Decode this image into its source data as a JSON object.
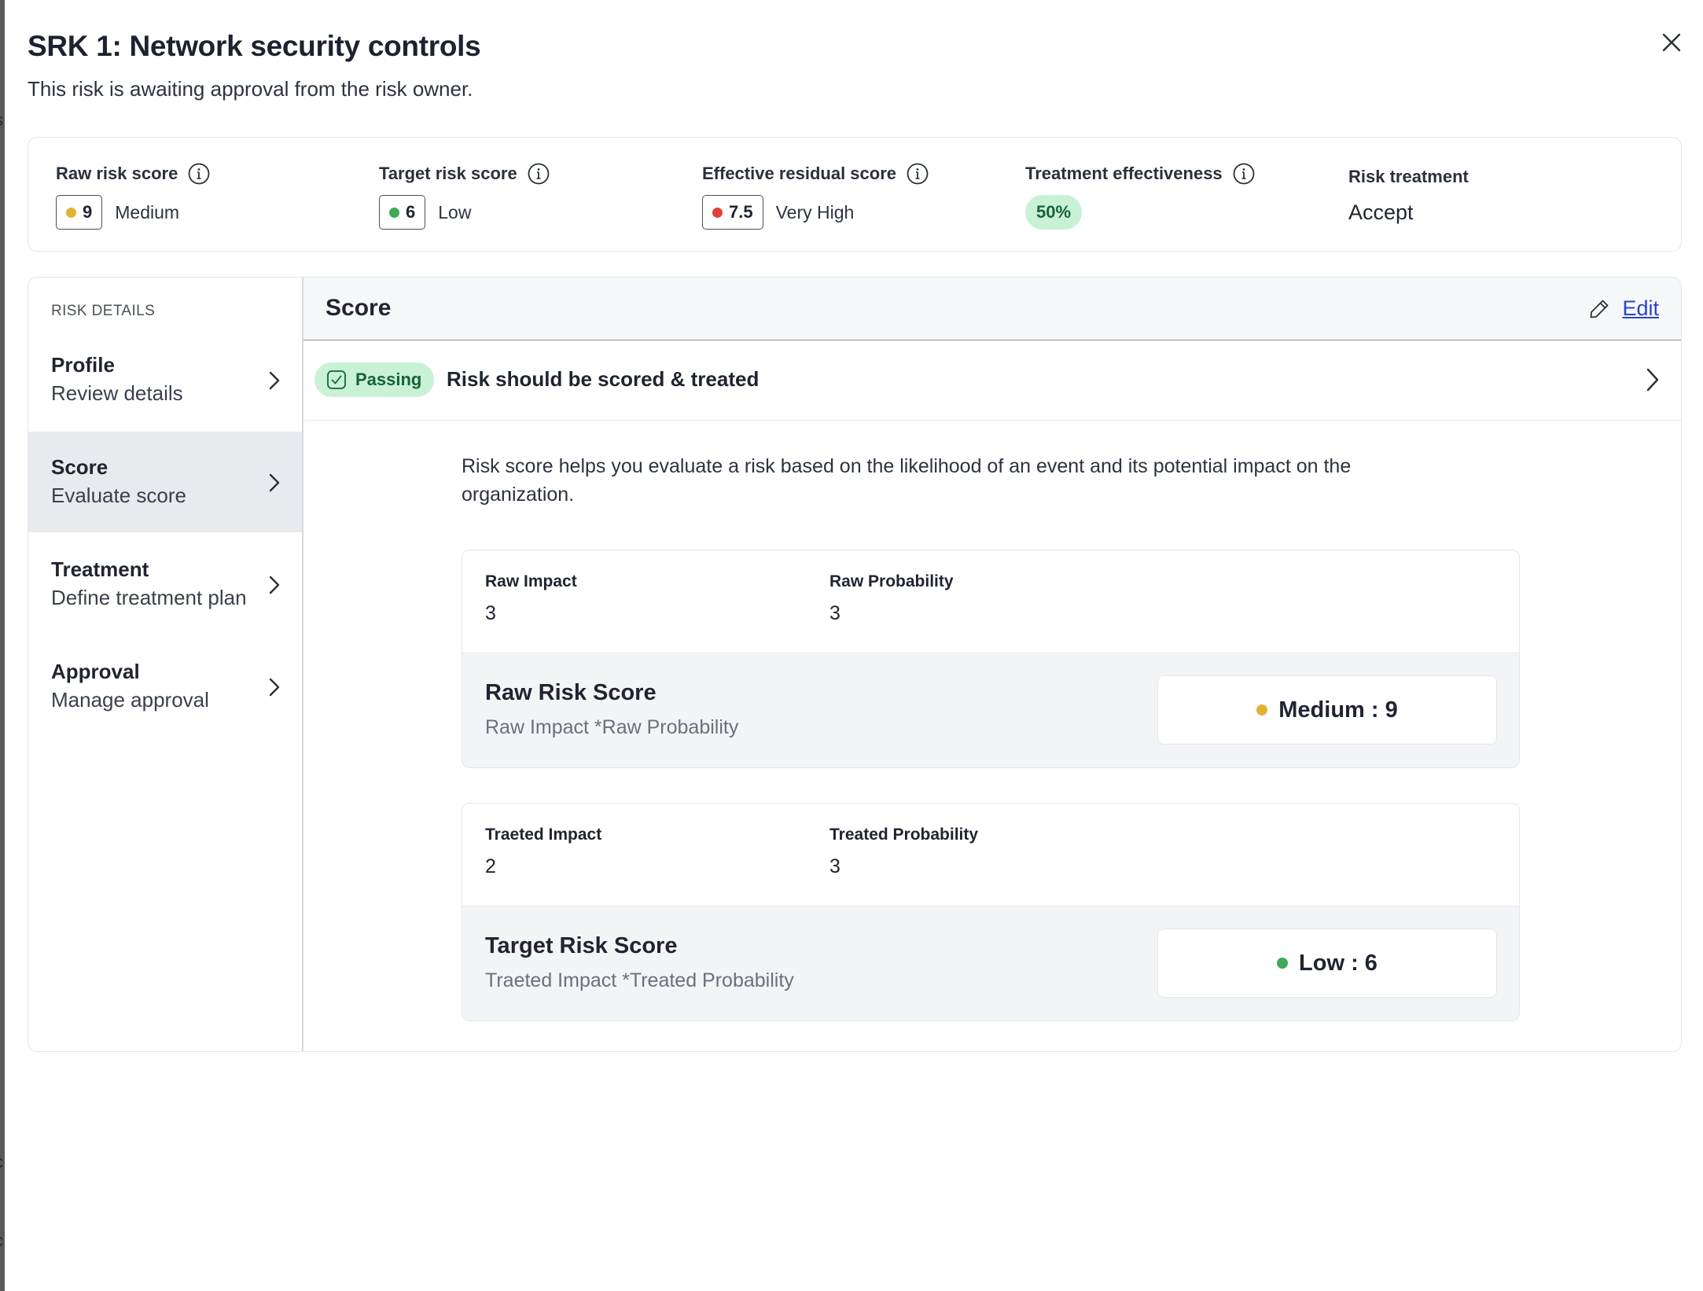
{
  "dialog": {
    "title": "SRK 1: Network security controls",
    "subtitle": "This risk is awaiting approval from the risk owner."
  },
  "summary": {
    "raw_risk": {
      "label": "Raw risk score",
      "score": "9",
      "level": "Medium",
      "color": "#e0b432"
    },
    "target_risk": {
      "label": "Target risk score",
      "score": "6",
      "level": "Low",
      "color": "#3fa957"
    },
    "effective_residual": {
      "label": "Effective residual score",
      "score": "7.5",
      "level": "Very High",
      "color": "#e0423a"
    },
    "treatment_effectiveness": {
      "label": "Treatment effectiveness",
      "value": "50%",
      "fraction": 0.5
    },
    "risk_treatment": {
      "label": "Risk treatment",
      "value": "Accept"
    }
  },
  "sidebar": {
    "heading": "RISK DETAILS",
    "items": [
      {
        "title": "Profile",
        "subtitle": "Review details",
        "active": false
      },
      {
        "title": "Score",
        "subtitle": "Evaluate score",
        "active": true
      },
      {
        "title": "Treatment",
        "subtitle": "Define treatment plan",
        "active": false
      },
      {
        "title": "Approval",
        "subtitle": "Manage approval",
        "active": false
      }
    ]
  },
  "content": {
    "title": "Score",
    "edit_label": "Edit",
    "test": {
      "status": "Passing",
      "text": "Risk should be scored & treated"
    },
    "description": "Risk score helps you evaluate a risk based on the likelihood of an event and its potential impact on the organization.",
    "raw_card": {
      "impact_label": "Raw Impact",
      "impact_value": "3",
      "probability_label": "Raw Probability",
      "probability_value": "3",
      "score_title": "Raw Risk Score",
      "formula": "Raw Impact *Raw Probability",
      "result": "Medium : 9",
      "result_color": "#e0b432"
    },
    "target_card": {
      "impact_label": "Traeted Impact",
      "impact_value": "2",
      "probability_label": "Treated Probability",
      "probability_value": "3",
      "score_title": "Target Risk Score",
      "formula": "Traeted Impact *Treated Probability",
      "result": "Low : 6",
      "result_color": "#3fa957"
    }
  },
  "icons": {
    "close": "close-icon",
    "info": "info-icon",
    "chevron": "chevron-right-icon",
    "edit": "pencil-icon",
    "check": "check-box-icon"
  }
}
